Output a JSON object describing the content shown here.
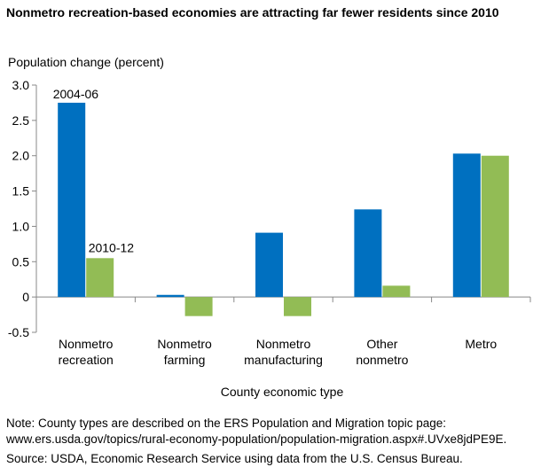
{
  "title": "Nonmetro recreation-based economies are attracting far fewer residents since 2010",
  "notes": {
    "note_line1": "Note: County types are described on the ERS Population and Migration topic page:",
    "note_line2": "www.ers.usda.gov/topics/rural-economy-population/population-migration.aspx#.UVxe8jdPE9E.",
    "source": "Source: USDA, Economic Research Service using data from the U.S. Census Bureau."
  },
  "colors": {
    "series1": "#0070c0",
    "series2": "#92bc55",
    "axis": "#888888"
  },
  "chart_data": {
    "type": "bar",
    "ylabel": "Population change (percent)",
    "xlabel": "County economic type",
    "ylim": [
      -0.5,
      3.0
    ],
    "yticks": [
      "3.0",
      "2.5",
      "2.0",
      "1.5",
      "1.0",
      "0.5",
      "0",
      "-0.5"
    ],
    "grid": false,
    "categories": [
      [
        "Nonmetro",
        "recreation"
      ],
      [
        "Nonmetro",
        "farming"
      ],
      [
        "Nonmetro",
        "manufacturing"
      ],
      [
        "Other",
        "nonmetro"
      ],
      [
        "Metro"
      ]
    ],
    "series": [
      {
        "name": "2004-06",
        "values": [
          2.75,
          0.03,
          0.91,
          1.24,
          2.03
        ]
      },
      {
        "name": "2010-12",
        "values": [
          0.55,
          -0.27,
          -0.27,
          0.16,
          2.0
        ]
      }
    ]
  }
}
